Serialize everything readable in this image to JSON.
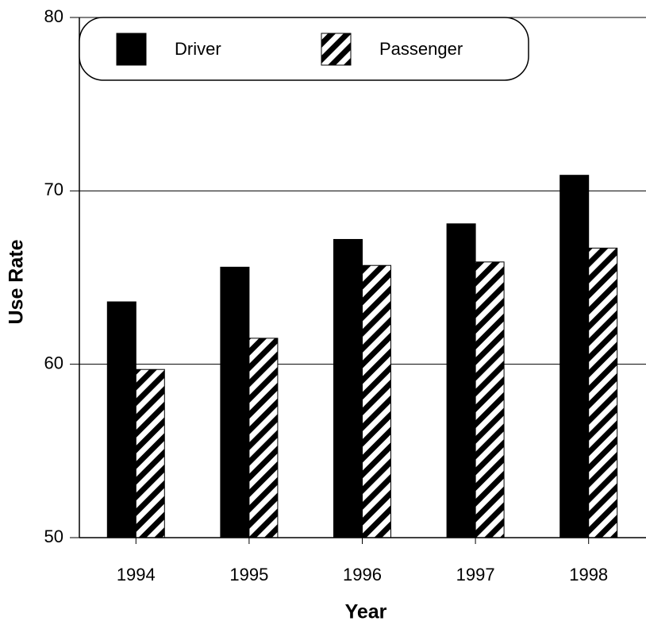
{
  "chart_data": {
    "type": "bar",
    "xlabel": "Year",
    "ylabel": "Use Rate",
    "categories": [
      "1994",
      "1995",
      "1996",
      "1997",
      "1998"
    ],
    "series": [
      {
        "name": "Driver",
        "color": "#000000",
        "pattern": "solid",
        "values": [
          63.6,
          65.6,
          67.2,
          68.1,
          70.9
        ]
      },
      {
        "name": "Passenger",
        "color": "#000000",
        "pattern": "diagonal-hatch",
        "values": [
          59.7,
          61.5,
          65.7,
          65.9,
          66.7
        ]
      }
    ],
    "ylim": [
      50,
      80
    ],
    "yticks": [
      50,
      60,
      70,
      80
    ],
    "grid": true,
    "legend": "top-left"
  }
}
